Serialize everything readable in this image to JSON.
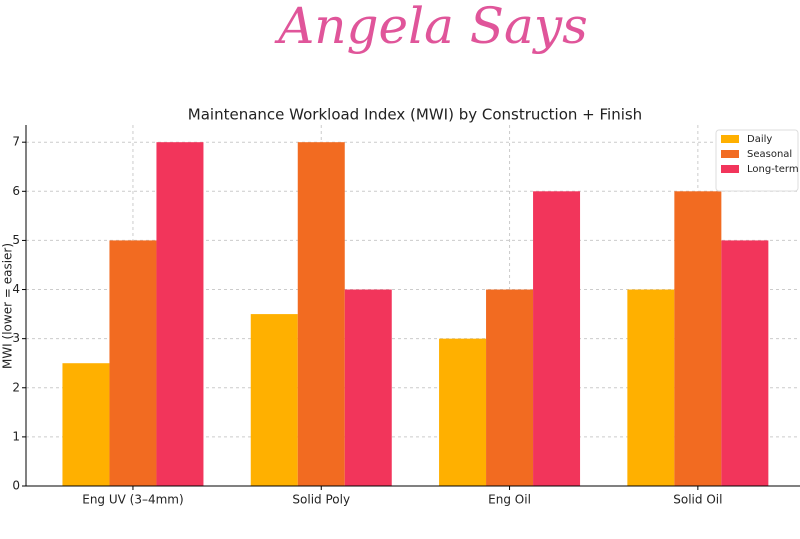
{
  "header": {
    "title": "Angela Says"
  },
  "chart_data": {
    "type": "bar",
    "title": "Maintenance Workload Index (MWI) by Construction + Finish",
    "y_label": "MWI (lower = easier)",
    "categories": [
      "Eng UV (3–4mm)",
      "Solid Poly",
      "Eng Oil",
      "Solid Oil"
    ],
    "series": [
      {
        "name": "Daily",
        "color": "#ffb000",
        "values": [
          2.5,
          3.5,
          3,
          4
        ]
      },
      {
        "name": "Seasonal",
        "color": "#f26b21",
        "values": [
          5,
          7,
          4,
          6
        ]
      },
      {
        "name": "Long-term",
        "color": "#f2355b",
        "values": [
          7,
          4,
          6,
          5
        ]
      }
    ],
    "ylim": [
      0,
      7.35
    ],
    "yticks": [
      0,
      1,
      2,
      3,
      4,
      5,
      6,
      7
    ],
    "grid": true,
    "legend": "upper right"
  }
}
